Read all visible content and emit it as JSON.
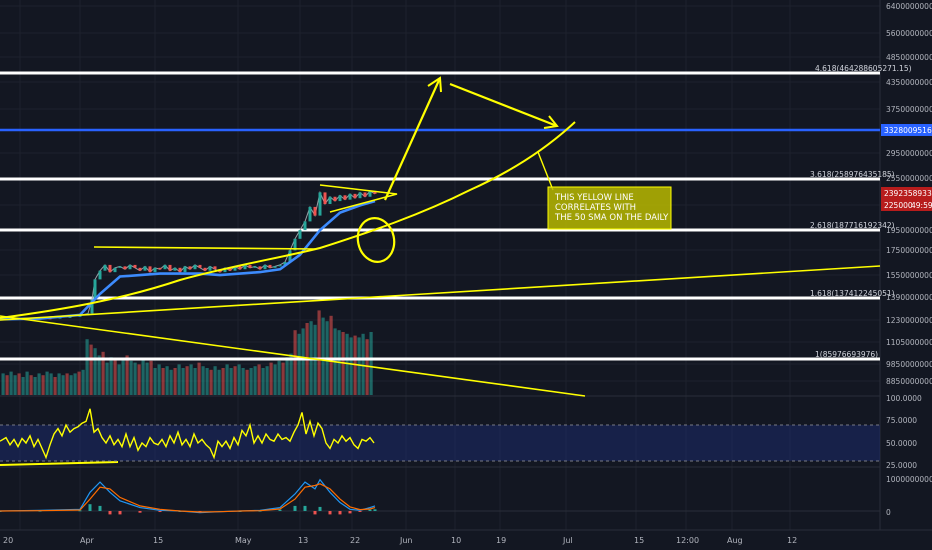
{
  "chart_data": {
    "type": "line",
    "price_axis": {
      "ticks": [
        "640000000000",
        "560000000000",
        "485000000000",
        "435000000000",
        "375000000000",
        "330000000000",
        "295000000000",
        "255000000000",
        "225000000000",
        "195000000000",
        "175000000000",
        "155000000000",
        "139000000000",
        "123000000000",
        "110500000000",
        "98500000000",
        "88500000000",
        "100.0000"
      ],
      "current_price_label": "239235893335",
      "last_bar_label": "225000",
      "countdown_label": "49:59",
      "blue_line_label": "332800951689"
    },
    "x_axis_ticks": [
      "20",
      "Apr",
      "15",
      "May",
      "13",
      "22",
      "Jun",
      "10",
      "19",
      "Jul",
      "15",
      "12:00",
      "Aug",
      "12"
    ],
    "rsi_axis": {
      "ticks": [
        "75.0000",
        "50.0000",
        "25.0000"
      ],
      "upper": 70,
      "lower": 30
    },
    "macd_axis": {
      "ticks": [
        "1000000000000",
        "0"
      ]
    },
    "fib_levels": [
      {
        "label": "4.618(464288605271.15)"
      },
      {
        "label": "3.618(258976435185)"
      },
      {
        "label": "2.618(187716192342)"
      },
      {
        "label": "1.618(137412245051)"
      },
      {
        "label": "1(85976693976)"
      }
    ],
    "annotation": {
      "lines": [
        "THIS YELLOW LINE",
        "CORRELATES WITH",
        "THE 50 SMA ON THE DAILY"
      ]
    },
    "colors": {
      "background": "#131722",
      "fib_line": "#ffffff",
      "blue_line": "#2962ff",
      "drawing": "#ffff00",
      "sma": "#3d8bfd",
      "up": "#26a69a",
      "down": "#ef5350",
      "rsi": "#ffff00",
      "annotation_bg": "#b8b800"
    },
    "price_series": [
      [
        0,
        1.0
      ],
      [
        10,
        1.2
      ],
      [
        20,
        0.9
      ],
      [
        30,
        1.3
      ],
      [
        40,
        1.5
      ],
      [
        50,
        1.4
      ],
      [
        60,
        2.0
      ],
      [
        70,
        2.5
      ],
      [
        80,
        3.2
      ],
      [
        88,
        4.5
      ],
      [
        92,
        14
      ],
      [
        95,
        28
      ],
      [
        100,
        34
      ],
      [
        105,
        38
      ],
      [
        110,
        33
      ],
      [
        115,
        36
      ],
      [
        120,
        37
      ],
      [
        125,
        35
      ],
      [
        130,
        38
      ],
      [
        135,
        36
      ],
      [
        140,
        34
      ],
      [
        145,
        37
      ],
      [
        150,
        33
      ],
      [
        155,
        36
      ],
      [
        160,
        35
      ],
      [
        165,
        38
      ],
      [
        170,
        34
      ],
      [
        175,
        36
      ],
      [
        180,
        33
      ],
      [
        185,
        37
      ],
      [
        190,
        35
      ],
      [
        195,
        38
      ],
      [
        200,
        36
      ],
      [
        205,
        34
      ],
      [
        210,
        37
      ],
      [
        215,
        35
      ],
      [
        220,
        33
      ],
      [
        225,
        36
      ],
      [
        230,
        34
      ],
      [
        235,
        37
      ],
      [
        240,
        35
      ],
      [
        245,
        38
      ],
      [
        250,
        36
      ],
      [
        255,
        37
      ],
      [
        260,
        35
      ],
      [
        265,
        38
      ],
      [
        270,
        36
      ],
      [
        275,
        37
      ],
      [
        280,
        38
      ],
      [
        285,
        40
      ],
      [
        290,
        48
      ],
      [
        295,
        56
      ],
      [
        300,
        62
      ],
      [
        305,
        68
      ],
      [
        310,
        78
      ],
      [
        315,
        72
      ],
      [
        320,
        88
      ],
      [
        325,
        80
      ],
      [
        330,
        85
      ],
      [
        335,
        82
      ],
      [
        340,
        86
      ],
      [
        345,
        83
      ],
      [
        350,
        87
      ],
      [
        355,
        84
      ],
      [
        360,
        88
      ],
      [
        365,
        85
      ],
      [
        370,
        89
      ],
      [
        375,
        87
      ]
    ],
    "sma_series": [
      [
        0,
        0.5
      ],
      [
        40,
        1.0
      ],
      [
        80,
        3.5
      ],
      [
        100,
        18
      ],
      [
        120,
        30
      ],
      [
        140,
        31
      ],
      [
        160,
        32
      ],
      [
        180,
        32
      ],
      [
        200,
        32
      ],
      [
        220,
        31
      ],
      [
        240,
        32
      ],
      [
        260,
        33
      ],
      [
        280,
        35
      ],
      [
        300,
        45
      ],
      [
        320,
        62
      ],
      [
        340,
        74
      ],
      [
        360,
        79
      ],
      [
        375,
        82
      ]
    ],
    "volume_series": [
      [
        3,
        24
      ],
      [
        7,
        22
      ],
      [
        11,
        26
      ],
      [
        15,
        22
      ],
      [
        19,
        24
      ],
      [
        23,
        20
      ],
      [
        27,
        26
      ],
      [
        31,
        22
      ],
      [
        35,
        20
      ],
      [
        39,
        24
      ],
      [
        43,
        22
      ],
      [
        47,
        26
      ],
      [
        51,
        24
      ],
      [
        55,
        20
      ],
      [
        59,
        24
      ],
      [
        63,
        22
      ],
      [
        67,
        24
      ],
      [
        71,
        22
      ],
      [
        75,
        24
      ],
      [
        79,
        26
      ],
      [
        83,
        28
      ],
      [
        87,
        62
      ],
      [
        91,
        56
      ],
      [
        95,
        52
      ],
      [
        99,
        44
      ],
      [
        103,
        48
      ],
      [
        107,
        36
      ],
      [
        111,
        42
      ],
      [
        115,
        40
      ],
      [
        119,
        34
      ],
      [
        123,
        40
      ],
      [
        127,
        44
      ],
      [
        131,
        38
      ],
      [
        135,
        36
      ],
      [
        139,
        34
      ],
      [
        143,
        40
      ],
      [
        147,
        36
      ],
      [
        151,
        38
      ],
      [
        155,
        30
      ],
      [
        159,
        34
      ],
      [
        163,
        30
      ],
      [
        167,
        32
      ],
      [
        171,
        28
      ],
      [
        175,
        30
      ],
      [
        179,
        34
      ],
      [
        183,
        30
      ],
      [
        187,
        32
      ],
      [
        191,
        34
      ],
      [
        195,
        30
      ],
      [
        199,
        36
      ],
      [
        203,
        32
      ],
      [
        207,
        30
      ],
      [
        211,
        28
      ],
      [
        215,
        32
      ],
      [
        219,
        28
      ],
      [
        223,
        30
      ],
      [
        227,
        34
      ],
      [
        231,
        30
      ],
      [
        235,
        32
      ],
      [
        239,
        34
      ],
      [
        243,
        30
      ],
      [
        247,
        28
      ],
      [
        251,
        30
      ],
      [
        255,
        32
      ],
      [
        259,
        34
      ],
      [
        263,
        30
      ],
      [
        267,
        32
      ],
      [
        271,
        36
      ],
      [
        275,
        34
      ],
      [
        279,
        38
      ],
      [
        283,
        36
      ],
      [
        287,
        42
      ],
      [
        291,
        46
      ],
      [
        295,
        72
      ],
      [
        299,
        68
      ],
      [
        303,
        74
      ],
      [
        307,
        80
      ],
      [
        311,
        82
      ],
      [
        315,
        78
      ],
      [
        319,
        94
      ],
      [
        323,
        86
      ],
      [
        327,
        82
      ],
      [
        331,
        88
      ],
      [
        335,
        74
      ],
      [
        339,
        72
      ],
      [
        343,
        70
      ],
      [
        347,
        68
      ],
      [
        351,
        64
      ],
      [
        355,
        66
      ],
      [
        359,
        64
      ],
      [
        363,
        68
      ],
      [
        367,
        62
      ],
      [
        371,
        70
      ]
    ],
    "rsi_series": [
      [
        0,
        52
      ],
      [
        6,
        56
      ],
      [
        10,
        48
      ],
      [
        14,
        54
      ],
      [
        18,
        46
      ],
      [
        22,
        55
      ],
      [
        26,
        50
      ],
      [
        30,
        58
      ],
      [
        34,
        46
      ],
      [
        38,
        54
      ],
      [
        42,
        44
      ],
      [
        46,
        34
      ],
      [
        50,
        48
      ],
      [
        54,
        60
      ],
      [
        58,
        66
      ],
      [
        62,
        58
      ],
      [
        66,
        70
      ],
      [
        70,
        62
      ],
      [
        74,
        66
      ],
      [
        78,
        68
      ],
      [
        82,
        72
      ],
      [
        86,
        74
      ],
      [
        90,
        88
      ],
      [
        94,
        62
      ],
      [
        98,
        66
      ],
      [
        102,
        56
      ],
      [
        106,
        50
      ],
      [
        110,
        58
      ],
      [
        114,
        48
      ],
      [
        118,
        54
      ],
      [
        122,
        46
      ],
      [
        126,
        60
      ],
      [
        130,
        46
      ],
      [
        134,
        56
      ],
      [
        138,
        42
      ],
      [
        142,
        50
      ],
      [
        146,
        46
      ],
      [
        150,
        56
      ],
      [
        154,
        50
      ],
      [
        158,
        48
      ],
      [
        162,
        54
      ],
      [
        166,
        46
      ],
      [
        170,
        58
      ],
      [
        174,
        50
      ],
      [
        178,
        62
      ],
      [
        182,
        48
      ],
      [
        186,
        54
      ],
      [
        190,
        46
      ],
      [
        194,
        60
      ],
      [
        198,
        50
      ],
      [
        202,
        54
      ],
      [
        206,
        48
      ],
      [
        210,
        44
      ],
      [
        214,
        34
      ],
      [
        218,
        52
      ],
      [
        222,
        46
      ],
      [
        226,
        52
      ],
      [
        230,
        44
      ],
      [
        234,
        56
      ],
      [
        238,
        48
      ],
      [
        242,
        64
      ],
      [
        246,
        58
      ],
      [
        250,
        70
      ],
      [
        254,
        50
      ],
      [
        258,
        58
      ],
      [
        262,
        50
      ],
      [
        266,
        60
      ],
      [
        270,
        54
      ],
      [
        274,
        52
      ],
      [
        278,
        60
      ],
      [
        282,
        54
      ],
      [
        286,
        56
      ],
      [
        290,
        52
      ],
      [
        294,
        62
      ],
      [
        298,
        70
      ],
      [
        302,
        84
      ],
      [
        306,
        60
      ],
      [
        310,
        74
      ],
      [
        314,
        58
      ],
      [
        318,
        72
      ],
      [
        322,
        66
      ],
      [
        326,
        50
      ],
      [
        330,
        44
      ],
      [
        334,
        54
      ],
      [
        338,
        50
      ],
      [
        342,
        58
      ],
      [
        346,
        52
      ],
      [
        350,
        56
      ],
      [
        354,
        48
      ],
      [
        358,
        44
      ],
      [
        362,
        54
      ],
      [
        366,
        52
      ],
      [
        370,
        56
      ],
      [
        374,
        50
      ]
    ],
    "macd_series": [
      [
        0,
        0
      ],
      [
        40,
        0.02
      ],
      [
        80,
        0.05
      ],
      [
        90,
        0.55
      ],
      [
        100,
        0.85
      ],
      [
        110,
        0.55
      ],
      [
        120,
        0.3
      ],
      [
        140,
        0.1
      ],
      [
        160,
        0.02
      ],
      [
        180,
        0
      ],
      [
        200,
        -0.05
      ],
      [
        220,
        -0.02
      ],
      [
        240,
        0
      ],
      [
        260,
        0.02
      ],
      [
        280,
        0.1
      ],
      [
        295,
        0.5
      ],
      [
        305,
        0.85
      ],
      [
        315,
        0.65
      ],
      [
        320,
        0.92
      ],
      [
        330,
        0.55
      ],
      [
        340,
        0.25
      ],
      [
        350,
        0.05
      ],
      [
        360,
        0.02
      ],
      [
        370,
        0.1
      ],
      [
        375,
        0.15
      ]
    ],
    "signal_series": [
      [
        0,
        0
      ],
      [
        40,
        0.01
      ],
      [
        80,
        0.03
      ],
      [
        90,
        0.35
      ],
      [
        100,
        0.7
      ],
      [
        110,
        0.65
      ],
      [
        120,
        0.4
      ],
      [
        140,
        0.15
      ],
      [
        160,
        0.05
      ],
      [
        180,
        0
      ],
      [
        200,
        -0.03
      ],
      [
        220,
        -0.02
      ],
      [
        240,
        0
      ],
      [
        260,
        0.01
      ],
      [
        280,
        0.06
      ],
      [
        295,
        0.35
      ],
      [
        305,
        0.7
      ],
      [
        315,
        0.75
      ],
      [
        320,
        0.8
      ],
      [
        330,
        0.65
      ],
      [
        340,
        0.35
      ],
      [
        350,
        0.12
      ],
      [
        360,
        0.04
      ],
      [
        370,
        0.06
      ],
      [
        375,
        0.1
      ]
    ]
  }
}
